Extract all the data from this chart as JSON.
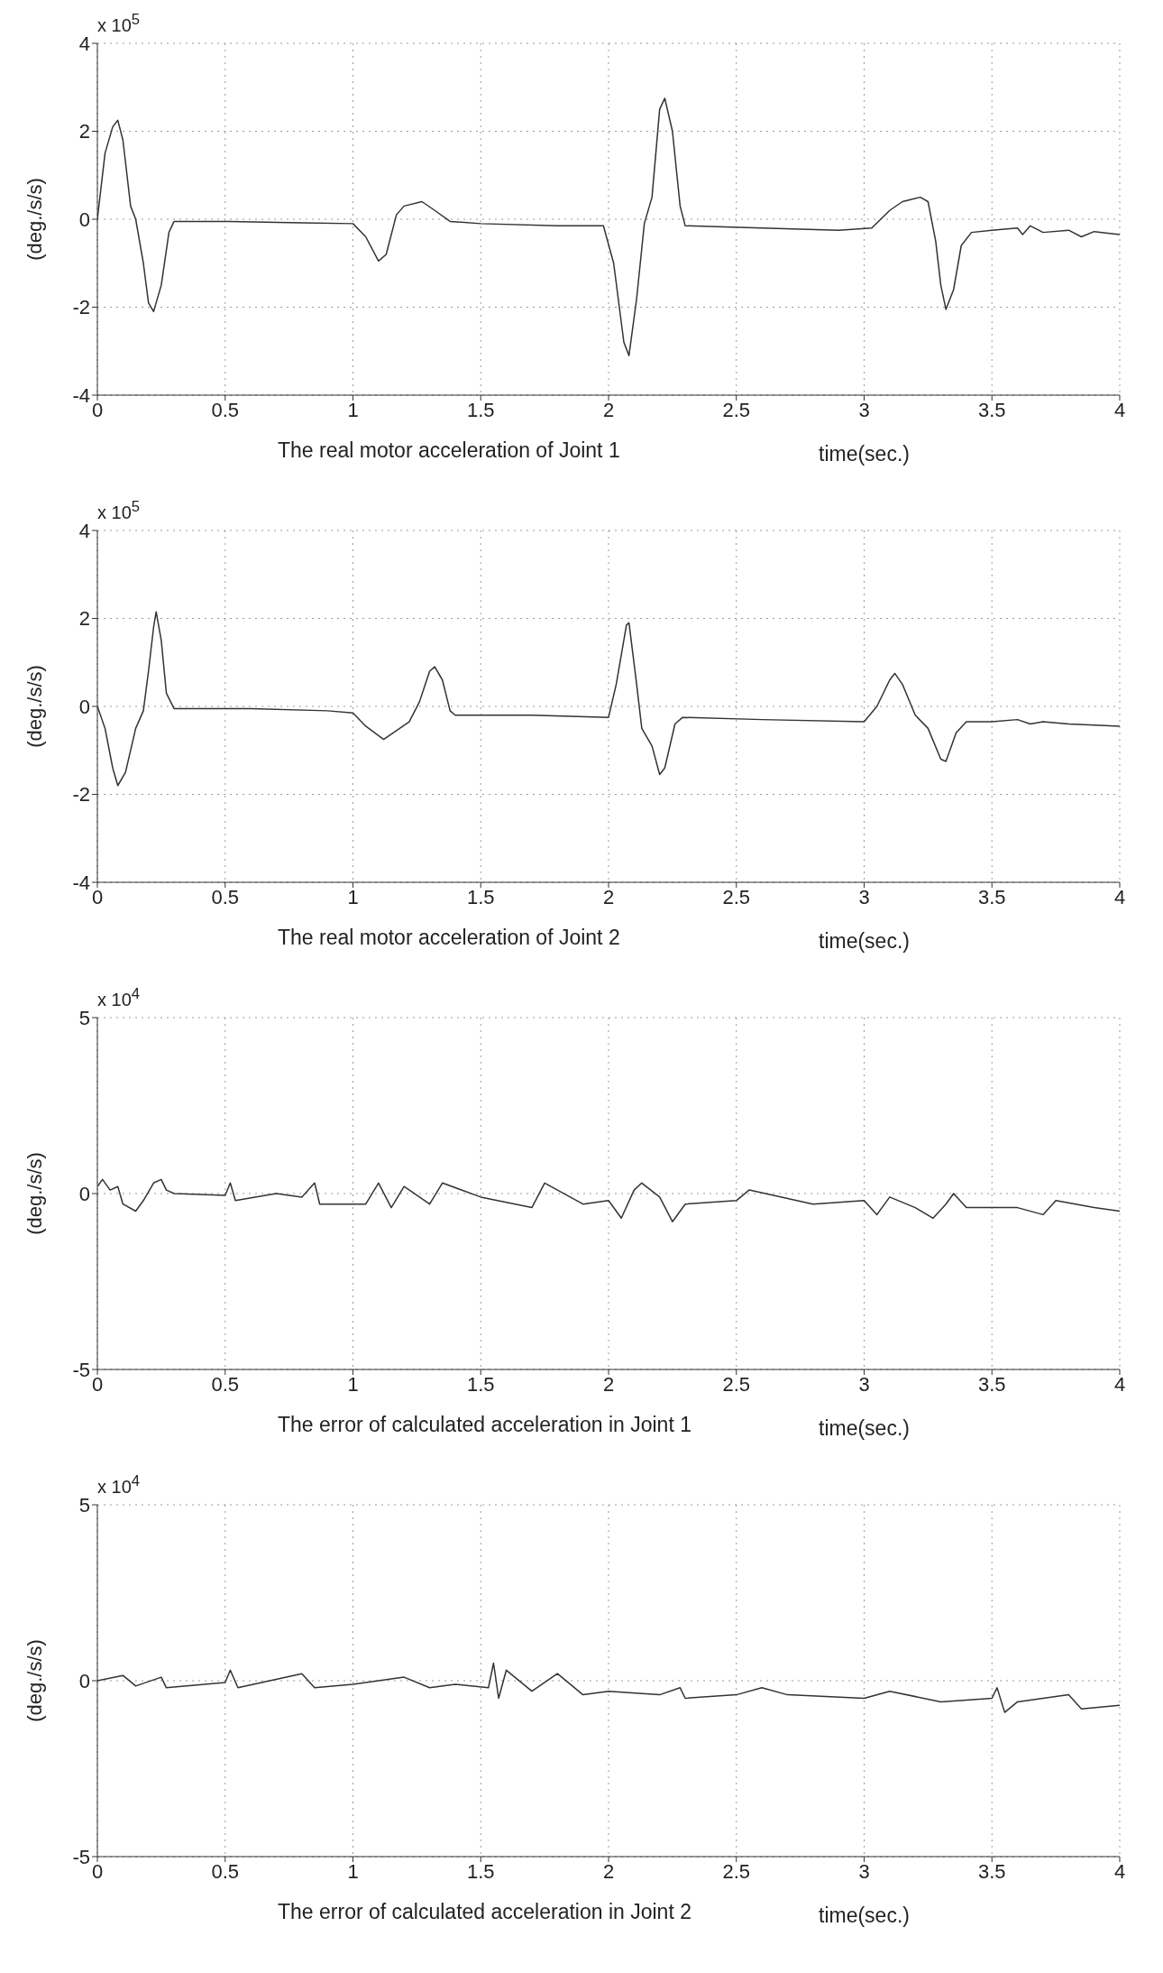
{
  "chart_data": [
    {
      "type": "line",
      "title": "The real motor acceleration of Joint 1",
      "xlabel": "time(sec.)",
      "ylabel": "(deg./s/s)",
      "annotations": [
        "x 10$^{5}$"
      ],
      "color": "#333333",
      "grid": true,
      "xlim": [
        0,
        4
      ],
      "xticks": [
        0,
        0.5,
        1,
        1.5,
        2,
        2.5,
        3,
        3.5,
        4
      ],
      "ylim": [
        -4,
        4
      ],
      "yticks": [
        -4,
        -2,
        0,
        2,
        4
      ],
      "x": [
        0,
        0.03,
        0.06,
        0.08,
        0.1,
        0.13,
        0.15,
        0.18,
        0.2,
        0.22,
        0.25,
        0.28,
        0.3,
        0.5,
        0.8,
        1.0,
        1.05,
        1.1,
        1.13,
        1.17,
        1.2,
        1.27,
        1.32,
        1.38,
        1.5,
        1.8,
        1.98,
        2.02,
        2.06,
        2.08,
        2.11,
        2.14,
        2.17,
        2.2,
        2.22,
        2.25,
        2.28,
        2.3,
        2.6,
        2.9,
        3.03,
        3.1,
        3.15,
        3.22,
        3.25,
        3.28,
        3.3,
        3.32,
        3.35,
        3.38,
        3.42,
        3.5,
        3.6,
        3.62,
        3.65,
        3.7,
        3.8,
        3.85,
        3.9,
        4
      ],
      "values": [
        0,
        1.5,
        2.1,
        2.25,
        1.8,
        0.3,
        0,
        -1.0,
        -1.9,
        -2.1,
        -1.5,
        -0.3,
        -0.05,
        -0.05,
        -0.08,
        -0.1,
        -0.4,
        -0.95,
        -0.8,
        0.1,
        0.3,
        0.4,
        0.2,
        -0.05,
        -0.1,
        -0.15,
        -0.15,
        -1.0,
        -2.8,
        -3.1,
        -1.8,
        -0.1,
        0.5,
        2.5,
        2.75,
        2.0,
        0.3,
        -0.15,
        -0.2,
        -0.25,
        -0.2,
        0.2,
        0.4,
        0.5,
        0.4,
        -0.5,
        -1.5,
        -2.05,
        -1.6,
        -0.6,
        -0.3,
        -0.25,
        -0.2,
        -0.35,
        -0.15,
        -0.3,
        -0.25,
        -0.4,
        -0.28,
        -0.35
      ]
    },
    {
      "type": "line",
      "title": "The real motor acceleration of Joint 2",
      "xlabel": "time(sec.)",
      "ylabel": "(deg./s/s)",
      "annotations": [
        "x 10$^{5}$"
      ],
      "color": "#333333",
      "grid": true,
      "xlim": [
        0,
        4
      ],
      "xticks": [
        0,
        0.5,
        1,
        1.5,
        2,
        2.5,
        3,
        3.5,
        4
      ],
      "ylim": [
        -4,
        4
      ],
      "yticks": [
        -4,
        -2,
        0,
        2,
        4
      ],
      "x": [
        0,
        0.03,
        0.06,
        0.08,
        0.11,
        0.15,
        0.18,
        0.2,
        0.22,
        0.23,
        0.25,
        0.27,
        0.3,
        0.6,
        0.9,
        1.0,
        1.05,
        1.12,
        1.17,
        1.22,
        1.26,
        1.3,
        1.32,
        1.35,
        1.38,
        1.4,
        1.7,
        2.0,
        2.03,
        2.07,
        2.08,
        2.11,
        2.13,
        2.17,
        2.2,
        2.22,
        2.26,
        2.29,
        2.6,
        3.0,
        3.05,
        3.1,
        3.12,
        3.15,
        3.2,
        3.25,
        3.3,
        3.32,
        3.36,
        3.4,
        3.5,
        3.6,
        3.65,
        3.7,
        3.8,
        4
      ],
      "values": [
        0,
        -0.5,
        -1.4,
        -1.8,
        -1.5,
        -0.5,
        -0.1,
        0.8,
        1.8,
        2.15,
        1.5,
        0.3,
        -0.05,
        -0.05,
        -0.1,
        -0.15,
        -0.45,
        -0.75,
        -0.55,
        -0.35,
        0.1,
        0.8,
        0.9,
        0.6,
        -0.1,
        -0.2,
        -0.2,
        -0.25,
        0.5,
        1.85,
        1.9,
        0.5,
        -0.5,
        -0.9,
        -1.55,
        -1.4,
        -0.4,
        -0.25,
        -0.3,
        -0.35,
        0,
        0.6,
        0.75,
        0.5,
        -0.2,
        -0.5,
        -1.2,
        -1.25,
        -0.6,
        -0.35,
        -0.35,
        -0.3,
        -0.4,
        -0.35,
        -0.4,
        -0.45
      ]
    },
    {
      "type": "line",
      "title": "The error of calculated acceleration in Joint 1",
      "xlabel": "time(sec.)",
      "ylabel": "(deg./s/s)",
      "annotations": [
        "x 10$^{4}$"
      ],
      "color": "#333333",
      "grid": true,
      "xlim": [
        0,
        4
      ],
      "xticks": [
        0,
        0.5,
        1,
        1.5,
        2,
        2.5,
        3,
        3.5,
        4
      ],
      "ylim": [
        -5,
        5
      ],
      "yticks": [
        -5,
        0,
        5
      ],
      "x": [
        0,
        0.02,
        0.05,
        0.08,
        0.1,
        0.15,
        0.18,
        0.22,
        0.25,
        0.27,
        0.3,
        0.5,
        0.52,
        0.54,
        0.7,
        0.8,
        0.85,
        0.87,
        1.05,
        1.1,
        1.15,
        1.2,
        1.3,
        1.35,
        1.5,
        1.7,
        1.75,
        1.9,
        2.0,
        2.05,
        2.1,
        2.13,
        2.2,
        2.25,
        2.3,
        2.5,
        2.55,
        2.8,
        3.0,
        3.05,
        3.1,
        3.2,
        3.27,
        3.32,
        3.35,
        3.4,
        3.6,
        3.7,
        3.75,
        3.9,
        4
      ],
      "values": [
        0.2,
        0.4,
        0.1,
        0.2,
        -0.3,
        -0.5,
        -0.2,
        0.3,
        0.4,
        0.1,
        0,
        -0.05,
        0.3,
        -0.2,
        0,
        -0.1,
        0.3,
        -0.3,
        -0.3,
        0.3,
        -0.4,
        0.2,
        -0.3,
        0.3,
        -0.1,
        -0.4,
        0.3,
        -0.3,
        -0.2,
        -0.7,
        0.1,
        0.3,
        -0.1,
        -0.8,
        -0.3,
        -0.2,
        0.1,
        -0.3,
        -0.2,
        -0.6,
        -0.1,
        -0.4,
        -0.7,
        -0.3,
        0,
        -0.4,
        -0.4,
        -0.6,
        -0.2,
        -0.4,
        -0.5
      ]
    },
    {
      "type": "line",
      "title": "The error of calculated acceleration in Joint 2",
      "xlabel": "time(sec.)",
      "ylabel": "(deg./s/s)",
      "annotations": [
        "x 10$^{4}$"
      ],
      "color": "#333333",
      "grid": true,
      "xlim": [
        0,
        4
      ],
      "xticks": [
        0,
        0.5,
        1,
        1.5,
        2,
        2.5,
        3,
        3.5,
        4
      ],
      "ylim": [
        -5,
        5
      ],
      "yticks": [
        -5,
        0,
        5
      ],
      "x": [
        0,
        0.1,
        0.15,
        0.25,
        0.27,
        0.5,
        0.52,
        0.55,
        0.8,
        0.85,
        1.0,
        1.2,
        1.3,
        1.4,
        1.53,
        1.55,
        1.57,
        1.6,
        1.7,
        1.8,
        1.9,
        2.0,
        2.2,
        2.28,
        2.3,
        2.5,
        2.6,
        2.7,
        3.0,
        3.1,
        3.3,
        3.5,
        3.52,
        3.55,
        3.6,
        3.8,
        3.85,
        4
      ],
      "values": [
        0,
        0.15,
        -0.15,
        0.1,
        -0.2,
        -0.05,
        0.3,
        -0.2,
        0.2,
        -0.2,
        -0.1,
        0.1,
        -0.2,
        -0.1,
        -0.2,
        0.5,
        -0.5,
        0.3,
        -0.3,
        0.2,
        -0.4,
        -0.3,
        -0.4,
        -0.2,
        -0.5,
        -0.4,
        -0.2,
        -0.4,
        -0.5,
        -0.3,
        -0.6,
        -0.5,
        -0.2,
        -0.9,
        -0.6,
        -0.4,
        -0.8,
        -0.7
      ]
    }
  ]
}
